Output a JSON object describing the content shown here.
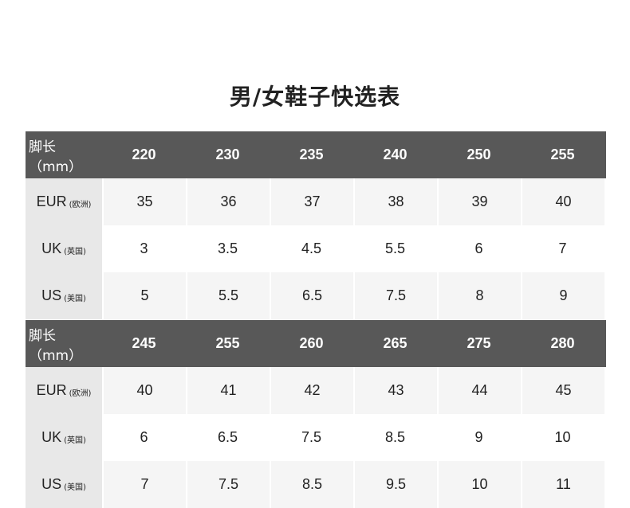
{
  "title": "男/女鞋子快选表",
  "tables": [
    {
      "header_label": "脚长（mm）",
      "foot_lengths": [
        "220",
        "230",
        "235",
        "240",
        "250",
        "255"
      ],
      "rows": [
        {
          "label": "EUR",
          "sub": "(欧洲)",
          "values": [
            "35",
            "36",
            "37",
            "38",
            "39",
            "40"
          ]
        },
        {
          "label": "UK",
          "sub": "(英国)",
          "values": [
            "3",
            "3.5",
            "4.5",
            "5.5",
            "6",
            "7"
          ]
        },
        {
          "label": "US",
          "sub": "(美国)",
          "values": [
            "5",
            "5.5",
            "6.5",
            "7.5",
            "8",
            "9"
          ]
        }
      ]
    },
    {
      "header_label": "脚长（mm）",
      "foot_lengths": [
        "245",
        "255",
        "260",
        "265",
        "275",
        "280"
      ],
      "rows": [
        {
          "label": "EUR",
          "sub": "(欧洲)",
          "values": [
            "40",
            "41",
            "42",
            "43",
            "44",
            "45"
          ]
        },
        {
          "label": "UK",
          "sub": "(英国)",
          "values": [
            "6",
            "6.5",
            "7.5",
            "8.5",
            "9",
            "10"
          ]
        },
        {
          "label": "US",
          "sub": "(美国)",
          "values": [
            "7",
            "7.5",
            "8.5",
            "9.5",
            "10",
            "11"
          ]
        }
      ]
    }
  ],
  "colors": {
    "header_bg": "#585858",
    "row_alt_bg": "#f5f5f5",
    "label_bg": "#e8e8e8"
  }
}
